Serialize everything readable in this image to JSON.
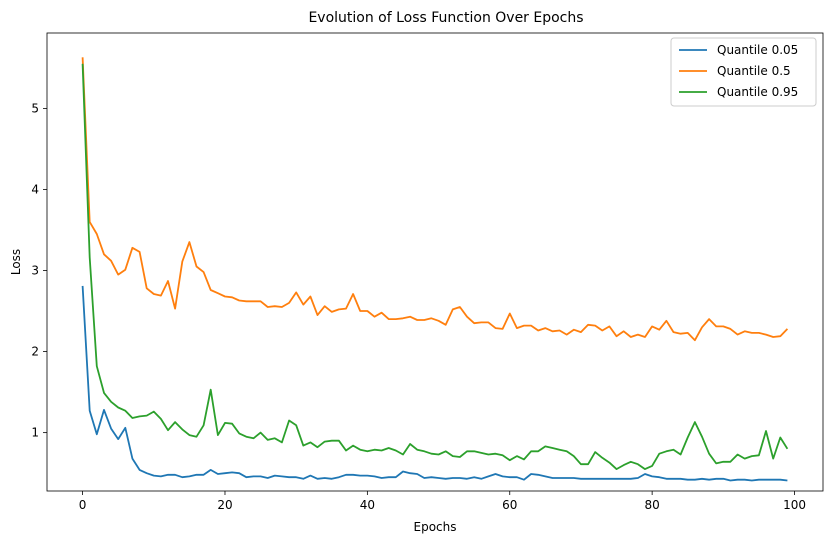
{
  "chart_data": {
    "type": "line",
    "title": "Evolution of Loss Function Over Epochs",
    "xlabel": "Epochs",
    "ylabel": "Loss",
    "xlim": [
      -5,
      104
    ],
    "ylim": [
      0.28,
      5.93
    ],
    "xticks": [
      0,
      20,
      40,
      60,
      80,
      100
    ],
    "yticks": [
      1,
      2,
      3,
      4,
      5
    ],
    "legend_position": "top-right",
    "grid": false,
    "x": [
      0,
      1,
      2,
      3,
      4,
      5,
      6,
      7,
      8,
      9,
      10,
      11,
      12,
      13,
      14,
      15,
      16,
      17,
      18,
      19,
      20,
      21,
      22,
      23,
      24,
      25,
      26,
      27,
      28,
      29,
      30,
      31,
      32,
      33,
      34,
      35,
      36,
      37,
      38,
      39,
      40,
      41,
      42,
      43,
      44,
      45,
      46,
      47,
      48,
      49,
      50,
      51,
      52,
      53,
      54,
      55,
      56,
      57,
      58,
      59,
      60,
      61,
      62,
      63,
      64,
      65,
      66,
      67,
      68,
      69,
      70,
      71,
      72,
      73,
      74,
      75,
      76,
      77,
      78,
      79,
      80,
      81,
      82,
      83,
      84,
      85,
      86,
      87,
      88,
      89,
      90,
      91,
      92,
      93,
      94,
      95,
      96,
      97,
      98,
      99
    ],
    "series": [
      {
        "name": "Quantile 0.05",
        "color": "#1f77b4",
        "values": [
          2.81,
          1.27,
          0.98,
          1.28,
          1.05,
          0.92,
          1.06,
          0.68,
          0.54,
          0.5,
          0.47,
          0.46,
          0.48,
          0.48,
          0.45,
          0.46,
          0.48,
          0.48,
          0.54,
          0.49,
          0.5,
          0.51,
          0.5,
          0.45,
          0.46,
          0.46,
          0.44,
          0.47,
          0.46,
          0.45,
          0.45,
          0.43,
          0.47,
          0.43,
          0.44,
          0.43,
          0.45,
          0.48,
          0.48,
          0.47,
          0.47,
          0.46,
          0.44,
          0.45,
          0.45,
          0.52,
          0.5,
          0.49,
          0.44,
          0.45,
          0.44,
          0.43,
          0.44,
          0.44,
          0.43,
          0.45,
          0.43,
          0.46,
          0.49,
          0.46,
          0.45,
          0.45,
          0.42,
          0.49,
          0.48,
          0.46,
          0.44,
          0.44,
          0.44,
          0.44,
          0.43,
          0.43,
          0.43,
          0.43,
          0.43,
          0.43,
          0.43,
          0.43,
          0.44,
          0.49,
          0.46,
          0.45,
          0.43,
          0.43,
          0.43,
          0.42,
          0.42,
          0.43,
          0.42,
          0.43,
          0.43,
          0.41,
          0.42,
          0.42,
          0.41,
          0.42,
          0.42,
          0.42,
          0.42,
          0.41
        ]
      },
      {
        "name": "Quantile 0.5",
        "color": "#ff7f0e",
        "values": [
          5.63,
          3.6,
          3.45,
          3.2,
          3.12,
          2.95,
          3.01,
          3.28,
          3.23,
          2.78,
          2.71,
          2.69,
          2.87,
          2.53,
          3.11,
          3.35,
          3.05,
          2.98,
          2.76,
          2.72,
          2.68,
          2.67,
          2.63,
          2.62,
          2.62,
          2.62,
          2.55,
          2.56,
          2.55,
          2.6,
          2.73,
          2.58,
          2.68,
          2.45,
          2.56,
          2.49,
          2.52,
          2.53,
          2.71,
          2.5,
          2.5,
          2.43,
          2.48,
          2.4,
          2.4,
          2.41,
          2.43,
          2.39,
          2.39,
          2.41,
          2.38,
          2.33,
          2.52,
          2.55,
          2.43,
          2.35,
          2.36,
          2.36,
          2.29,
          2.28,
          2.47,
          2.29,
          2.32,
          2.32,
          2.26,
          2.29,
          2.25,
          2.26,
          2.21,
          2.27,
          2.24,
          2.33,
          2.32,
          2.26,
          2.31,
          2.19,
          2.25,
          2.18,
          2.21,
          2.18,
          2.31,
          2.27,
          2.38,
          2.24,
          2.22,
          2.23,
          2.14,
          2.3,
          2.4,
          2.31,
          2.31,
          2.28,
          2.21,
          2.25,
          2.23,
          2.23,
          2.21,
          2.18,
          2.19,
          2.28
        ]
      },
      {
        "name": "Quantile 0.95",
        "color": "#2ca02c",
        "values": [
          5.55,
          3.16,
          1.82,
          1.49,
          1.38,
          1.31,
          1.27,
          1.18,
          1.2,
          1.21,
          1.26,
          1.17,
          1.03,
          1.13,
          1.04,
          0.97,
          0.95,
          1.09,
          1.53,
          0.97,
          1.12,
          1.11,
          0.99,
          0.95,
          0.93,
          1.0,
          0.91,
          0.93,
          0.88,
          1.15,
          1.09,
          0.84,
          0.88,
          0.82,
          0.89,
          0.9,
          0.9,
          0.78,
          0.84,
          0.79,
          0.77,
          0.79,
          0.78,
          0.81,
          0.78,
          0.73,
          0.86,
          0.79,
          0.77,
          0.74,
          0.73,
          0.77,
          0.71,
          0.7,
          0.77,
          0.77,
          0.75,
          0.73,
          0.74,
          0.72,
          0.66,
          0.71,
          0.67,
          0.77,
          0.77,
          0.83,
          0.81,
          0.79,
          0.77,
          0.71,
          0.61,
          0.61,
          0.76,
          0.69,
          0.63,
          0.55,
          0.6,
          0.64,
          0.61,
          0.55,
          0.59,
          0.74,
          0.77,
          0.79,
          0.73,
          0.94,
          1.13,
          0.95,
          0.74,
          0.62,
          0.64,
          0.64,
          0.73,
          0.68,
          0.71,
          0.72,
          1.02,
          0.68,
          0.94,
          0.8
        ]
      }
    ]
  }
}
